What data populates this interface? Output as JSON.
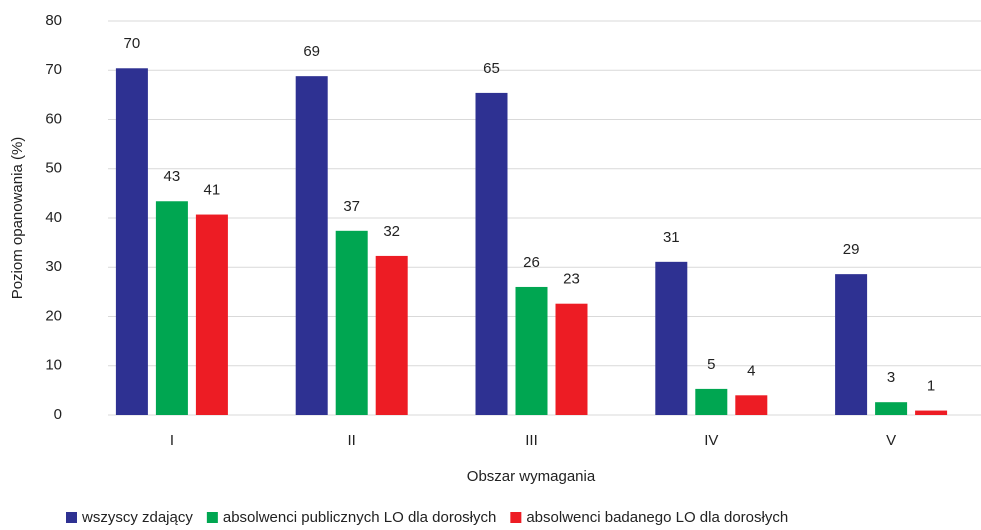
{
  "chart_data": {
    "type": "bar",
    "x_label": "Obszar wymagania",
    "y_label": "Poziom opanowania (%)",
    "categories": [
      "I",
      "II",
      "III",
      "IV",
      "V"
    ],
    "series": [
      {
        "name": "wszyscy zdający",
        "color": "#2e3192",
        "values": [
          70.4,
          68.8,
          65.4,
          31.1,
          28.6
        ],
        "value_labels": [
          "70",
          "69",
          "65",
          "31",
          "29"
        ]
      },
      {
        "name": "absolwenci publicznych LO dla dorosłych",
        "color": "#00a651",
        "values": [
          43.4,
          37.4,
          26.0,
          5.3,
          2.6
        ],
        "value_labels": [
          "43",
          "37",
          "26",
          "5",
          "3"
        ]
      },
      {
        "name": "absolwenci badanego LO dla dorosłych",
        "color": "#ed1c24",
        "values": [
          40.7,
          32.3,
          22.6,
          4.0,
          0.9
        ],
        "value_labels": [
          "41",
          "32",
          "23",
          "4",
          "1"
        ]
      }
    ],
    "ylim": [
      0,
      80
    ],
    "yticks": [
      0,
      10,
      20,
      30,
      40,
      50,
      60,
      70,
      80
    ],
    "grid": true,
    "legend": "bottom"
  }
}
